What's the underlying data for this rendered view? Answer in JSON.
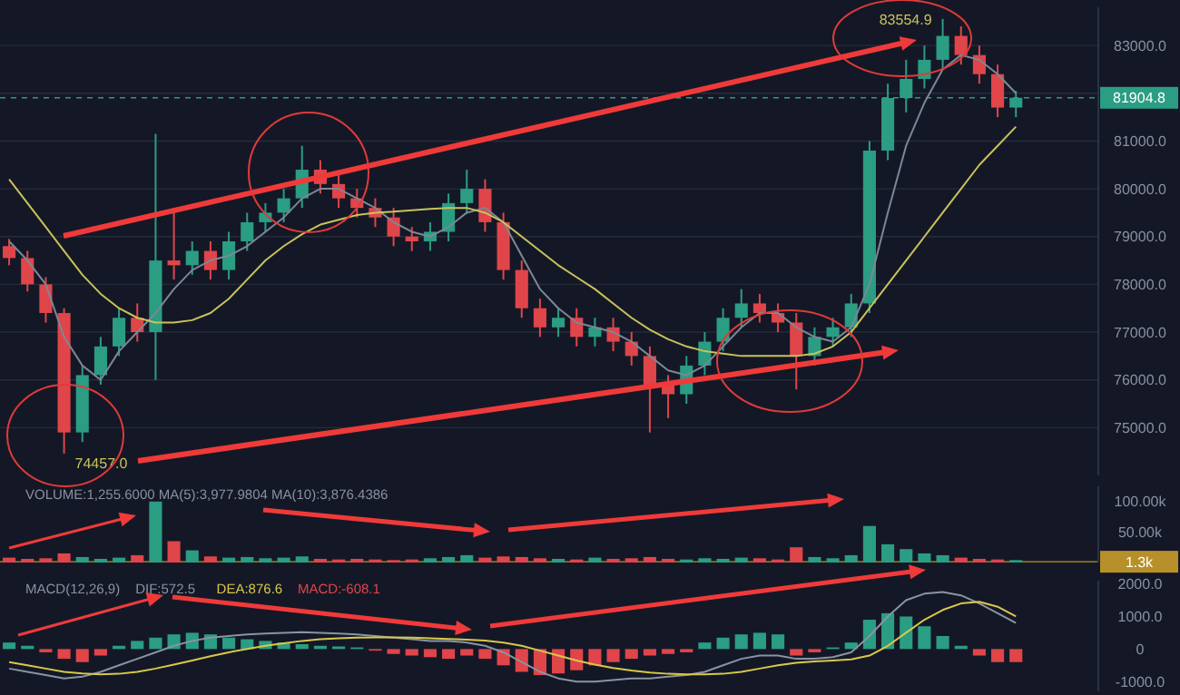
{
  "chart_data": [
    {
      "type": "candlestick",
      "categories": [
        null,
        null,
        null,
        null,
        null,
        null,
        null,
        null,
        null,
        null,
        null,
        null,
        null,
        null,
        null,
        null,
        null,
        null,
        null,
        null,
        null,
        null,
        null,
        null,
        null,
        null,
        null,
        null,
        null,
        null,
        null,
        null,
        null,
        null,
        null,
        null,
        null,
        null,
        null,
        null,
        null,
        null,
        null,
        null,
        null,
        null,
        null,
        null,
        null,
        null,
        null,
        null,
        null,
        null,
        null,
        null,
        null,
        null,
        null,
        null
      ],
      "ohlc": [
        [
          78800,
          78950,
          78400,
          78550
        ],
        [
          78550,
          78700,
          77850,
          78000
        ],
        [
          78000,
          78150,
          77200,
          77400
        ],
        [
          77400,
          77500,
          74457,
          74900
        ],
        [
          74900,
          76300,
          74700,
          76100
        ],
        [
          76100,
          76900,
          75900,
          76700
        ],
        [
          76700,
          77500,
          76500,
          77300
        ],
        [
          77300,
          77600,
          76800,
          77000
        ],
        [
          77000,
          81150,
          76000,
          78500
        ],
        [
          78500,
          79600,
          78100,
          78400
        ],
        [
          78400,
          78900,
          78200,
          78700
        ],
        [
          78700,
          78900,
          78100,
          78300
        ],
        [
          78300,
          79100,
          78100,
          78900
        ],
        [
          78900,
          79500,
          78700,
          79300
        ],
        [
          79300,
          79700,
          79100,
          79500
        ],
        [
          79500,
          80000,
          79300,
          79800
        ],
        [
          79800,
          80900,
          79600,
          80400
        ],
        [
          80400,
          80600,
          79900,
          80100
        ],
        [
          80100,
          80300,
          79600,
          79800
        ],
        [
          79800,
          80000,
          79400,
          79600
        ],
        [
          79600,
          79800,
          79200,
          79400
        ],
        [
          79400,
          79600,
          78800,
          79000
        ],
        [
          79000,
          79200,
          78700,
          78900
        ],
        [
          78900,
          79300,
          78700,
          79100
        ],
        [
          79100,
          79900,
          78900,
          79700
        ],
        [
          79700,
          80400,
          79500,
          80000
        ],
        [
          80000,
          80200,
          79100,
          79300
        ],
        [
          79300,
          79500,
          78100,
          78300
        ],
        [
          78300,
          78500,
          77300,
          77500
        ],
        [
          77500,
          77700,
          76900,
          77100
        ],
        [
          77100,
          77500,
          76900,
          77300
        ],
        [
          77300,
          77500,
          76700,
          76900
        ],
        [
          76900,
          77300,
          76700,
          77100
        ],
        [
          77100,
          77300,
          76600,
          76800
        ],
        [
          76800,
          77000,
          76300,
          76500
        ],
        [
          76500,
          76700,
          74900,
          75900
        ],
        [
          75900,
          76100,
          75200,
          75700
        ],
        [
          75700,
          76500,
          75500,
          76300
        ],
        [
          76300,
          77000,
          76100,
          76800
        ],
        [
          76800,
          77500,
          76600,
          77300
        ],
        [
          77300,
          77900,
          77100,
          77600
        ],
        [
          77600,
          77800,
          77200,
          77400
        ],
        [
          77400,
          77600,
          77000,
          77200
        ],
        [
          77200,
          77400,
          75800,
          76500
        ],
        [
          76500,
          77100,
          76300,
          76900
        ],
        [
          76900,
          77300,
          76700,
          77100
        ],
        [
          77100,
          77800,
          76900,
          77600
        ],
        [
          77600,
          81000,
          77400,
          80800
        ],
        [
          80800,
          82200,
          80600,
          81900
        ],
        [
          81900,
          82700,
          81600,
          82300
        ],
        [
          82300,
          83000,
          82100,
          82700
        ],
        [
          82700,
          83554.9,
          82500,
          83200
        ],
        [
          83200,
          83400,
          82600,
          82800
        ],
        [
          82800,
          83000,
          82200,
          82400
        ],
        [
          82400,
          82600,
          81500,
          81700
        ],
        [
          81700,
          82050,
          81500,
          81904.8
        ],
        null,
        null,
        null,
        null
      ],
      "colors": [
        "#e0454a",
        "#e0454a",
        "#e0454a",
        "#e0454a",
        "#2a9d83",
        "#2a9d83",
        "#2a9d83",
        "#e0454a",
        "#2a9d83",
        "#e0454a",
        "#2a9d83",
        "#e0454a",
        "#2a9d83",
        "#2a9d83",
        "#2a9d83",
        "#2a9d83",
        "#2a9d83",
        "#e0454a",
        "#e0454a",
        "#e0454a",
        "#e0454a",
        "#e0454a",
        "#e0454a",
        "#2a9d83",
        "#2a9d83",
        "#2a9d83",
        "#e0454a",
        "#e0454a",
        "#e0454a",
        "#e0454a",
        "#2a9d83",
        "#e0454a",
        "#2a9d83",
        "#e0454a",
        "#e0454a",
        "#e0454a",
        "#e0454a",
        "#2a9d83",
        "#2a9d83",
        "#2a9d83",
        "#2a9d83",
        "#e0454a",
        "#e0454a",
        "#e0454a",
        "#2a9d83",
        "#2a9d83",
        "#2a9d83",
        "#2a9d83",
        "#2a9d83",
        "#2a9d83",
        "#2a9d83",
        "#2a9d83",
        "#e0454a",
        "#e0454a",
        "#e0454a",
        "#2a9d83",
        null,
        null,
        null,
        null
      ],
      "series": [
        {
          "type": "line",
          "color": "#7d8796",
          "values": [
            78900,
            78500,
            78000,
            76900,
            76300,
            76000,
            76600,
            77000,
            77400,
            77900,
            78300,
            78500,
            78600,
            78800,
            79100,
            79400,
            79800,
            80000,
            80000,
            79800,
            79600,
            79300,
            79100,
            79000,
            79200,
            79500,
            79600,
            79300,
            78600,
            77900,
            77500,
            77200,
            77100,
            77000,
            76800,
            76500,
            76200,
            76100,
            76300,
            76700,
            77100,
            77400,
            77400,
            77100,
            76900,
            76800,
            77100,
            78000,
            79500,
            80900,
            81800,
            82500,
            82800,
            82700,
            82400,
            82000,
            null,
            null,
            null,
            null
          ]
        },
        {
          "type": "line",
          "color": "#c9c25a",
          "values": [
            80200,
            79700,
            79200,
            78700,
            78200,
            77800,
            77500,
            77300,
            77200,
            77200,
            77250,
            77400,
            77700,
            78100,
            78500,
            78800,
            79050,
            79250,
            79350,
            79450,
            79500,
            79520,
            79550,
            79580,
            79600,
            79600,
            79500,
            79300,
            79000,
            78700,
            78400,
            78150,
            77900,
            77600,
            77300,
            77050,
            76850,
            76700,
            76600,
            76550,
            76500,
            76500,
            76500,
            76500,
            76550,
            76700,
            77000,
            77500,
            78000,
            78500,
            79000,
            79500,
            80000,
            80500,
            80900,
            81300,
            null,
            null,
            null,
            null
          ]
        }
      ],
      "ylim": [
        74000,
        83800
      ],
      "yticks": [
        {
          "value": 75000,
          "label": "75000.0"
        },
        {
          "value": 76000,
          "label": "76000.0"
        },
        {
          "value": 77000,
          "label": "77000.0"
        },
        {
          "value": 78000,
          "label": "78000.0"
        },
        {
          "value": 79000,
          "label": "79000.0"
        },
        {
          "value": 80000,
          "label": "80000.0"
        },
        {
          "value": 81000,
          "label": "81000.0"
        },
        {
          "value": 82000,
          "label": null
        },
        {
          "value": 83000,
          "label": "83000.0"
        }
      ],
      "grid": "y",
      "tick_labels": "y",
      "ref_lines": [
        {
          "axis": "y",
          "value": 81904.8,
          "label": "81904.8",
          "color": "#2a9d83",
          "line_style": "dashed"
        }
      ],
      "annotations": [
        "74457.0",
        "83554.9"
      ]
    },
    {
      "type": "bar",
      "title": "VOLUME:1,255.6000  MA(5):3,977.9804  MA(10):3,876.4386",
      "categories": [
        null,
        null,
        null,
        null,
        null,
        null,
        null,
        null,
        null,
        null,
        null,
        null,
        null,
        null,
        null,
        null,
        null,
        null,
        null,
        null,
        null,
        null,
        null,
        null,
        null,
        null,
        null,
        null,
        null,
        null,
        null,
        null,
        null,
        null,
        null,
        null,
        null,
        null,
        null,
        null,
        null,
        null,
        null,
        null,
        null,
        null,
        null,
        null,
        null,
        null,
        null,
        null,
        null,
        null,
        null,
        null,
        null,
        null,
        null,
        null
      ],
      "values": [
        8000,
        6000,
        7000,
        15000,
        9000,
        6000,
        8000,
        12000,
        100000,
        35000,
        20000,
        10000,
        8000,
        9000,
        7000,
        8000,
        10000,
        6000,
        5000,
        6000,
        5000,
        4000,
        5000,
        7000,
        9000,
        12000,
        8000,
        10000,
        9000,
        7000,
        6000,
        5000,
        8000,
        6000,
        7000,
        9000,
        6000,
        5000,
        7000,
        6000,
        8000,
        7000,
        5000,
        25000,
        9000,
        7000,
        12000,
        60000,
        30000,
        22000,
        15000,
        12000,
        8000,
        6000,
        5000,
        4000,
        null,
        null,
        null,
        null
      ],
      "colors": [
        "#e0454a",
        "#e0454a",
        "#e0454a",
        "#e0454a",
        "#2a9d83",
        "#2a9d83",
        "#2a9d83",
        "#e0454a",
        "#2a9d83",
        "#e0454a",
        "#2a9d83",
        "#e0454a",
        "#2a9d83",
        "#2a9d83",
        "#2a9d83",
        "#2a9d83",
        "#2a9d83",
        "#e0454a",
        "#e0454a",
        "#e0454a",
        "#e0454a",
        "#e0454a",
        "#e0454a",
        "#2a9d83",
        "#2a9d83",
        "#2a9d83",
        "#e0454a",
        "#e0454a",
        "#e0454a",
        "#e0454a",
        "#2a9d83",
        "#e0454a",
        "#2a9d83",
        "#e0454a",
        "#e0454a",
        "#e0454a",
        "#e0454a",
        "#2a9d83",
        "#2a9d83",
        "#2a9d83",
        "#2a9d83",
        "#e0454a",
        "#e0454a",
        "#e0454a",
        "#2a9d83",
        "#2a9d83",
        "#2a9d83",
        "#2a9d83",
        "#2a9d83",
        "#2a9d83",
        "#2a9d83",
        "#2a9d83",
        "#e0454a",
        "#e0454a",
        "#e0454a",
        "#2a9d83",
        null,
        null,
        null,
        null
      ],
      "ylim": [
        0,
        125000
      ],
      "yticks": [
        {
          "value": 50000,
          "label": "50.00k"
        },
        {
          "value": 100000,
          "label": "100.00k"
        }
      ],
      "tick_labels": "y",
      "ref_lines": [
        {
          "axis": "y",
          "value": 1300,
          "label": "1.3k",
          "color": "#b8902a"
        }
      ]
    },
    {
      "type": "bar",
      "title": "MACD(12,26,9)",
      "legend": "top left",
      "categories": [
        null,
        null,
        null,
        null,
        null,
        null,
        null,
        null,
        null,
        null,
        null,
        null,
        null,
        null,
        null,
        null,
        null,
        null,
        null,
        null,
        null,
        null,
        null,
        null,
        null,
        null,
        null,
        null,
        null,
        null,
        null,
        null,
        null,
        null,
        null,
        null,
        null,
        null,
        null,
        null,
        null,
        null,
        null,
        null,
        null,
        null,
        null,
        null,
        null,
        null,
        null,
        null,
        null,
        null,
        null,
        null,
        null,
        null,
        null,
        null
      ],
      "series": [
        {
          "type": "line",
          "name": "DIF:572.5",
          "color": "#8a93a3",
          "values": [
            -600,
            -700,
            -800,
            -900,
            -850,
            -700,
            -500,
            -300,
            -100,
            100,
            250,
            350,
            400,
            450,
            480,
            500,
            520,
            500,
            480,
            450,
            400,
            350,
            300,
            250,
            250,
            200,
            100,
            -100,
            -400,
            -700,
            -900,
            -1000,
            -1000,
            -950,
            -900,
            -900,
            -850,
            -800,
            -700,
            -500,
            -300,
            -200,
            -200,
            -300,
            -300,
            -250,
            -100,
            400,
            1000,
            1500,
            1700,
            1750,
            1650,
            1400,
            1100,
            800,
            null,
            null,
            null,
            null
          ]
        },
        {
          "type": "line",
          "name": "DEA:876.6",
          "color": "#d9c84a",
          "values": [
            -400,
            -500,
            -600,
            -700,
            -750,
            -780,
            -760,
            -700,
            -600,
            -480,
            -350,
            -220,
            -100,
            0,
            100,
            180,
            250,
            300,
            330,
            350,
            360,
            360,
            350,
            330,
            310,
            290,
            260,
            200,
            100,
            -50,
            -200,
            -350,
            -480,
            -580,
            -660,
            -720,
            -760,
            -780,
            -780,
            -760,
            -700,
            -600,
            -500,
            -420,
            -380,
            -350,
            -320,
            -200,
            100,
            500,
            900,
            1200,
            1400,
            1450,
            1300,
            1000,
            null,
            null,
            null,
            null
          ]
        },
        {
          "type": "bar",
          "name": "MACD:-608.1",
          "color": "#e0454a",
          "values": [
            200,
            100,
            -100,
            -300,
            -400,
            -200,
            100,
            250,
            350,
            450,
            500,
            450,
            350,
            300,
            250,
            200,
            150,
            100,
            80,
            50,
            -50,
            -150,
            -200,
            -250,
            -300,
            -200,
            -300,
            -500,
            -700,
            -800,
            -750,
            -650,
            -500,
            -400,
            -300,
            -200,
            -150,
            -100,
            200,
            350,
            450,
            500,
            450,
            -200,
            -100,
            50,
            200,
            900,
            1100,
            1000,
            700,
            400,
            100,
            -200,
            -400,
            -400,
            null,
            null,
            null,
            null
          ],
          "colors": [
            "#2a9d83",
            "#2a9d83",
            "#e0454a",
            "#e0454a",
            "#e0454a",
            "#e0454a",
            "#2a9d83",
            "#2a9d83",
            "#2a9d83",
            "#2a9d83",
            "#2a9d83",
            "#2a9d83",
            "#2a9d83",
            "#2a9d83",
            "#2a9d83",
            "#2a9d83",
            "#2a9d83",
            "#2a9d83",
            "#2a9d83",
            "#2a9d83",
            "#e0454a",
            "#e0454a",
            "#e0454a",
            "#e0454a",
            "#e0454a",
            "#e0454a",
            "#e0454a",
            "#e0454a",
            "#e0454a",
            "#e0454a",
            "#e0454a",
            "#e0454a",
            "#e0454a",
            "#e0454a",
            "#e0454a",
            "#e0454a",
            "#e0454a",
            "#e0454a",
            "#2a9d83",
            "#2a9d83",
            "#2a9d83",
            "#2a9d83",
            "#2a9d83",
            "#e0454a",
            "#e0454a",
            "#2a9d83",
            "#2a9d83",
            "#2a9d83",
            "#2a9d83",
            "#2a9d83",
            "#2a9d83",
            "#2a9d83",
            "#2a9d83",
            "#e0454a",
            "#e0454a",
            "#e0454a",
            null,
            null,
            null,
            null
          ]
        }
      ],
      "ylim": [
        -1300,
        2100
      ],
      "yticks": [
        {
          "value": 2000,
          "label": "2000.0"
        },
        {
          "value": 1000,
          "label": "1000.0"
        },
        0,
        {
          "value": -1000,
          "label": "-1000.0"
        }
      ],
      "tick_labels": "y"
    }
  ]
}
